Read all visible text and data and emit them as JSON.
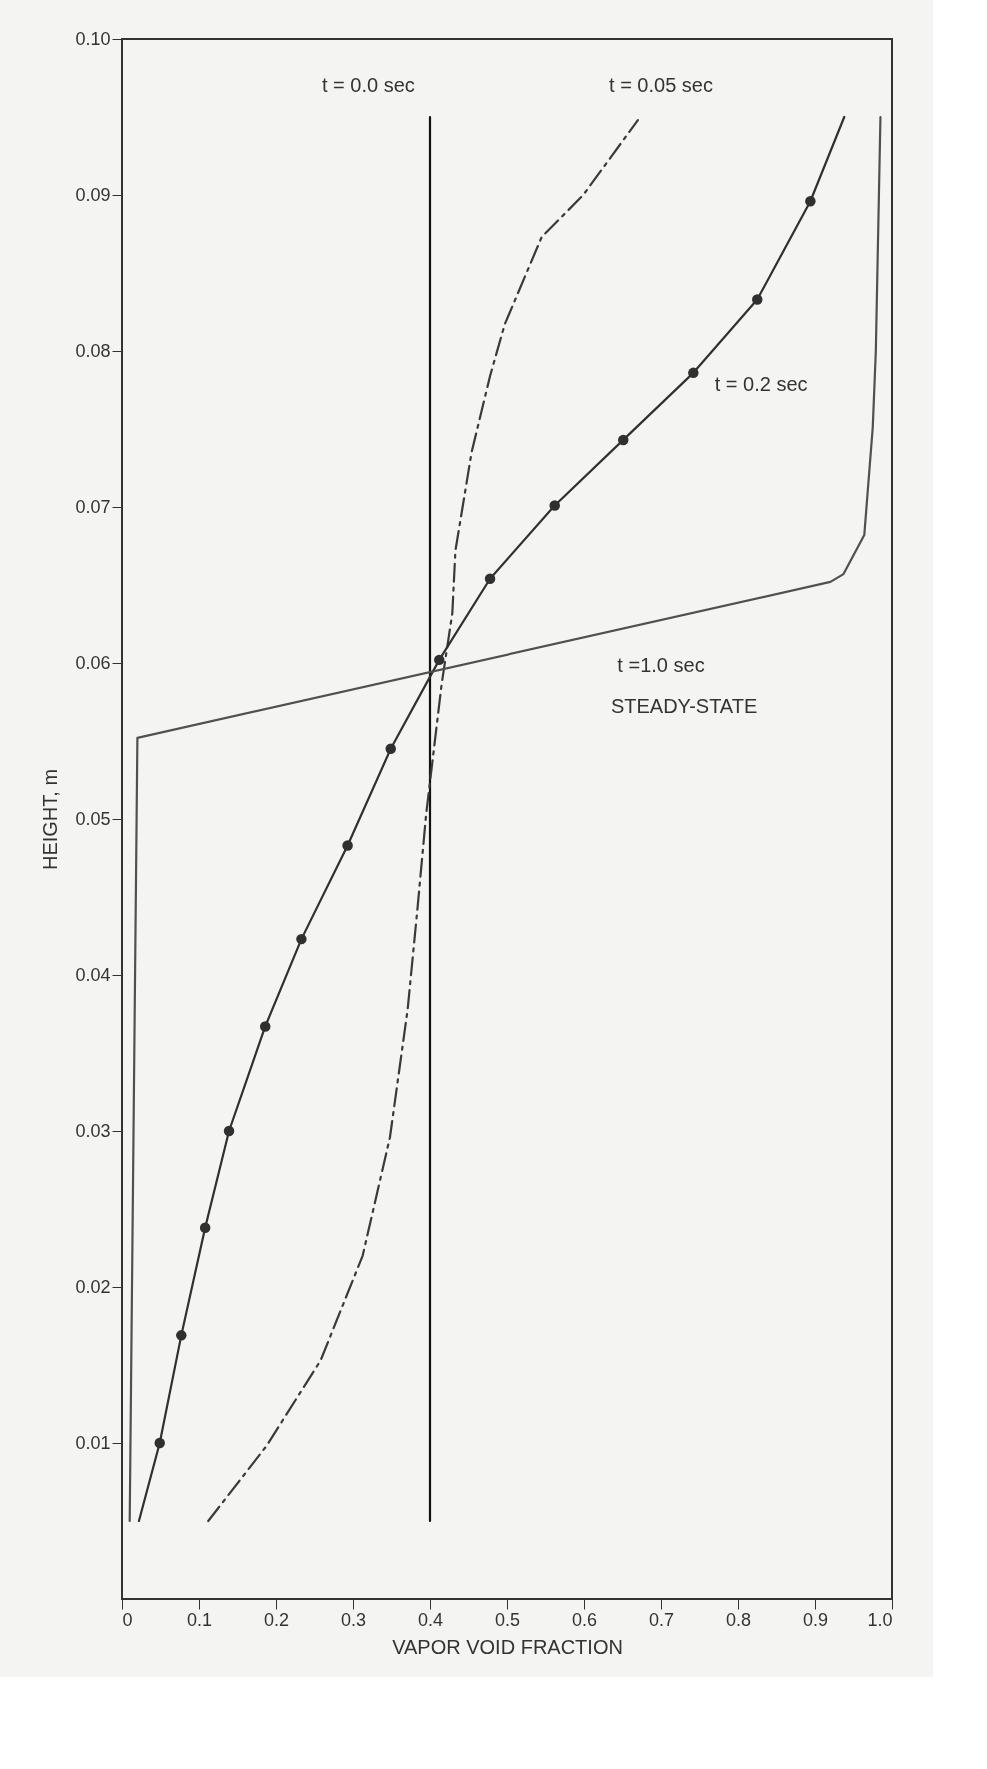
{
  "chart_data": {
    "type": "line",
    "xlabel": "VAPOR VOID FRACTION",
    "ylabel": "HEIGHT, m",
    "xlim": [
      0,
      1.0
    ],
    "ylim": [
      0,
      0.1
    ],
    "xticks": [
      0,
      0.1,
      0.2,
      0.3,
      0.4,
      0.5,
      0.6,
      0.7,
      0.8,
      0.9,
      {
        "value": 1.0,
        "label": "1.0"
      }
    ],
    "yticks": [
      0.01,
      0.02,
      0.03,
      0.04,
      0.05,
      0.06,
      0.07,
      0.08,
      0.09,
      {
        "value": 0.1,
        "label": "0.10"
      }
    ],
    "grid": false,
    "series": [
      {
        "type": "line",
        "color": "#111111",
        "line_style": "solid",
        "x": [
          0.4,
          0.4,
          0.4
        ],
        "values": [
          0.005,
          0.05,
          0.095
        ]
      },
      {
        "type": "line",
        "color": "#3a3a3a",
        "line_style": "dashed",
        "x": [
          0.112,
          0.1875,
          0.258,
          0.3125,
          0.348,
          0.371,
          0.384,
          0.395,
          0.415,
          0.429,
          0.433,
          0.454,
          0.478,
          0.497,
          0.545,
          0.599,
          0.67
        ],
        "values": [
          0.005,
          0.0098,
          0.0153,
          0.022,
          0.0296,
          0.0378,
          0.0444,
          0.0503,
          0.0586,
          0.0632,
          0.0672,
          0.0735,
          0.0784,
          0.0817,
          0.0873,
          0.09,
          0.0948
        ]
      },
      {
        "type": "line",
        "color": "#303030",
        "line_style": "solid",
        "x": [
          0.022,
          0.049,
          0.077,
          0.108,
          0.139,
          0.186,
          0.233,
          0.293,
          0.349,
          0.412,
          0.478,
          0.562,
          0.651,
          0.742,
          0.825,
          0.894,
          0.938
        ],
        "values": [
          0.005,
          0.01,
          0.0169,
          0.0238,
          0.03,
          0.0367,
          0.0423,
          0.0483,
          0.0545,
          0.0602,
          0.0654,
          0.0701,
          0.0743,
          0.0786,
          0.0833,
          0.0896,
          0.095
        ]
      },
      {
        "type": "scatter",
        "color": "#303030",
        "marker": "circle",
        "x": [
          0.049,
          0.077,
          0.108,
          0.139,
          0.186,
          0.233,
          0.293,
          0.349,
          0.412,
          0.478,
          0.562,
          0.651,
          0.742,
          0.825,
          0.894
        ],
        "values": [
          0.01,
          0.0169,
          0.0238,
          0.03,
          0.0367,
          0.0423,
          0.0483,
          0.0545,
          0.0602,
          0.0654,
          0.0701,
          0.0743,
          0.0786,
          0.0833,
          0.0896
        ]
      },
      {
        "type": "line",
        "color": "#505050",
        "line_style": "solid",
        "x": [
          0.01,
          0.02,
          0.92,
          0.937,
          0.964,
          0.975,
          0.979,
          0.985
        ],
        "values": [
          0.005,
          0.0552,
          0.0652,
          0.0657,
          0.0682,
          0.0751,
          0.08,
          0.095
        ]
      }
    ],
    "annotations": [
      "t = 0.0 sec",
      "t = 0.05 sec",
      "t = 0.2 sec",
      "t =1.0 sec",
      "STEADY-STATE"
    ]
  }
}
